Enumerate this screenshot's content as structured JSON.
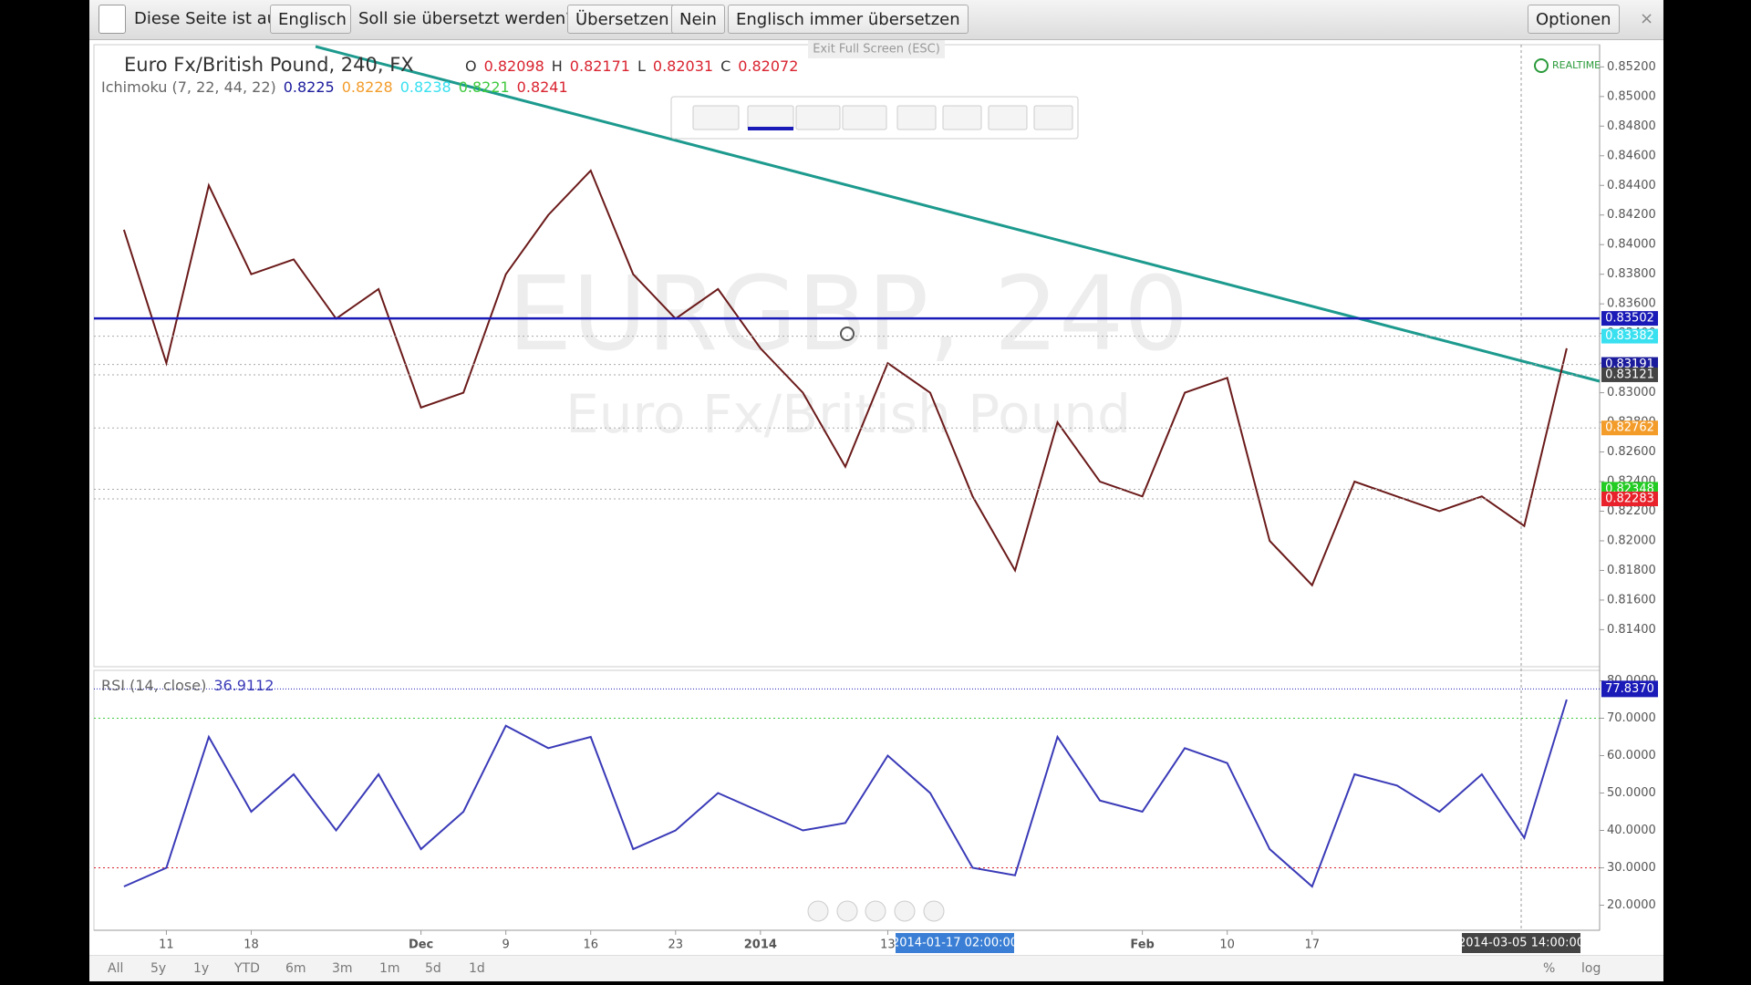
{
  "translate_bar": {
    "prefix": "Diese Seite ist auf",
    "language": "Englisch",
    "question": "Soll sie übersetzt werden?",
    "buttons": [
      "Übersetzen",
      "Nein",
      "Englisch immer übersetzen"
    ],
    "options": "Optionen",
    "close": "×"
  },
  "exit_fullscreen": "Exit Full Screen (ESC)",
  "realtime": "REALTIME",
  "chart_data": [
    {
      "type": "line",
      "title": "Euro Fx/British Pound, 240, FX",
      "watermark": [
        "EURGBP, 240",
        "Euro Fx/British Pound"
      ],
      "ohlc": [
        {
          "label": "O",
          "value": 0.82098
        },
        {
          "label": "H",
          "value": 0.82171
        },
        {
          "label": "L",
          "value": 0.82031
        },
        {
          "label": "C",
          "value": 0.82072
        }
      ],
      "indicator": {
        "name": "Ichimoku (7, 22, 44, 22)",
        "values": [
          0.8225,
          0.8228,
          0.8238,
          0.8221,
          0.8241
        ],
        "colors": [
          "#1a1a9c",
          "#f39c2a",
          "#38e0f0",
          "#3ec93e",
          "#d9232f"
        ]
      },
      "categories": [
        null,
        "11",
        null,
        "18",
        null,
        null,
        null,
        "Dec",
        null,
        "9",
        null,
        "16",
        null,
        "23",
        null,
        "2014",
        null,
        null,
        "13",
        null,
        null,
        null,
        null,
        null,
        "Feb",
        null,
        "10",
        null,
        "17",
        null,
        null,
        null,
        null,
        null,
        null
      ],
      "values": [
        0.841,
        0.832,
        0.844,
        0.838,
        0.839,
        0.835,
        0.837,
        0.829,
        0.83,
        0.838,
        0.842,
        0.845,
        0.838,
        0.835,
        0.837,
        0.833,
        0.83,
        0.825,
        0.832,
        0.83,
        0.823,
        0.818,
        0.828,
        0.824,
        0.823,
        0.83,
        0.831,
        0.82,
        0.817,
        0.824,
        0.823,
        0.822,
        0.823,
        0.821,
        0.833
      ],
      "color": "#6b1a1a",
      "ylim": [
        0.8115,
        0.8535
      ],
      "yticks": [
        {
          "value": 0.814,
          "label": "0.81400"
        },
        {
          "value": 0.816,
          "label": "0.81600"
        },
        {
          "value": 0.818,
          "label": "0.81800"
        },
        {
          "value": 0.82,
          "label": "0.82000"
        },
        {
          "value": 0.822,
          "label": "0.82200"
        },
        {
          "value": 0.824,
          "label": "0.82400"
        },
        {
          "value": 0.826,
          "label": "0.82600"
        },
        {
          "value": 0.828,
          "label": "0.82800"
        },
        {
          "value": 0.83,
          "label": "0.83000"
        },
        {
          "value": 0.832,
          "label": "0.83200"
        },
        {
          "value": 0.834,
          "label": "0.83400"
        },
        {
          "value": 0.836,
          "label": "0.83600"
        },
        {
          "value": 0.838,
          "label": "0.83800"
        },
        {
          "value": 0.84,
          "label": "0.84000"
        },
        {
          "value": 0.842,
          "label": "0.84200"
        },
        {
          "value": 0.844,
          "label": "0.84400"
        },
        {
          "value": 0.846,
          "label": "0.84600"
        },
        {
          "value": 0.848,
          "label": "0.84800"
        },
        {
          "value": 0.85,
          "label": "0.85000"
        },
        {
          "value": 0.852,
          "label": "0.85200"
        }
      ],
      "price_markers": [
        {
          "value": 0.83502,
          "color": "#1a1ab8"
        },
        {
          "value": 0.83382,
          "color": "#38e0f0"
        },
        {
          "value": 0.83191,
          "color": "#1a1a9c"
        },
        {
          "value": 0.83121,
          "color": "#444444"
        },
        {
          "value": 0.82762,
          "color": "#f39c2a"
        },
        {
          "value": 0.82348,
          "color": "#22cc22"
        },
        {
          "value": 0.82283,
          "color": "#e8212b"
        }
      ]
    },
    {
      "type": "line",
      "title": "RSI (14, close)",
      "last": 36.9112,
      "values": [
        25,
        30,
        65,
        45,
        55,
        40,
        55,
        35,
        45,
        68,
        62,
        65,
        35,
        40,
        50,
        45,
        40,
        42,
        60,
        50,
        30,
        28,
        65,
        48,
        45,
        62,
        58,
        35,
        25,
        55,
        52,
        45,
        55,
        38,
        75
      ],
      "color": "#3a3ab8",
      "ylim": [
        13.3,
        82.8
      ],
      "yticks": [
        {
          "value": 20,
          "label": "20.0000"
        },
        {
          "value": 30,
          "label": "30.0000"
        },
        {
          "value": 40,
          "label": "40.0000"
        },
        {
          "value": 50,
          "label": "50.0000"
        },
        {
          "value": 60,
          "label": "60.0000"
        },
        {
          "value": 70,
          "label": "70.0000"
        },
        {
          "value": 80,
          "label": "80.0000"
        }
      ],
      "levels": [
        70,
        30
      ],
      "marker": {
        "value": 77.837,
        "label": "77.8370",
        "color": "#1a1ab8"
      }
    }
  ],
  "crosshair_labels": [
    "2014-01-17 02:00:00",
    "2014-03-05 14:00:00"
  ],
  "range_buttons": [
    "All",
    "5y",
    "1y",
    "YTD",
    "6m",
    "3m",
    "1m",
    "5d",
    "1d"
  ],
  "scale_buttons": [
    "%",
    "log"
  ]
}
